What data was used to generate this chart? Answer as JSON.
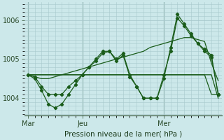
{
  "xlabel": "Pression niveau de la mer( hPa )",
  "bg_color": "#cce8ea",
  "grid_color": "#a8c8cc",
  "line_color": "#1a5c1a",
  "ylim": [
    1003.55,
    1006.45
  ],
  "yticks": [
    1004,
    1005,
    1006
  ],
  "xtick_labels": [
    "Mar",
    "Jeu",
    "Mer"
  ],
  "xtick_positions": [
    0,
    8,
    20
  ],
  "n_points": 29,
  "series": [
    {
      "y": [
        1004.6,
        1004.6,
        1004.6,
        1004.6,
        1004.6,
        1004.6,
        1004.6,
        1004.6,
        1004.6,
        1004.6,
        1004.6,
        1004.6,
        1004.6,
        1004.6,
        1004.6,
        1004.6,
        1004.6,
        1004.6,
        1004.6,
        1004.6,
        1004.6,
        1004.6,
        1004.6,
        1004.6,
        1004.6,
        1004.6,
        1004.6,
        1004.1,
        1004.1
      ],
      "marker": false
    },
    {
      "y": [
        1004.6,
        1004.6,
        1004.6,
        1004.6,
        1004.6,
        1004.6,
        1004.6,
        1004.6,
        1004.6,
        1004.6,
        1004.6,
        1004.6,
        1004.6,
        1004.6,
        1004.6,
        1004.6,
        1004.6,
        1004.6,
        1004.6,
        1004.6,
        1004.6,
        1004.6,
        1004.6,
        1004.6,
        1004.6,
        1004.6,
        1004.6,
        1004.6,
        1004.0
      ],
      "marker": false
    },
    {
      "y": [
        1004.6,
        1004.55,
        1004.5,
        1004.5,
        1004.55,
        1004.6,
        1004.65,
        1004.7,
        1004.75,
        1004.8,
        1004.85,
        1004.9,
        1004.95,
        1005.0,
        1005.05,
        1005.1,
        1005.15,
        1005.2,
        1005.3,
        1005.35,
        1005.4,
        1005.45,
        1005.5,
        1005.55,
        1005.55,
        1005.5,
        1005.45,
        1004.9,
        1004.45
      ],
      "marker": false
    },
    {
      "y": [
        1004.6,
        1004.55,
        1004.3,
        1004.1,
        1004.1,
        1004.1,
        1004.3,
        1004.45,
        1004.6,
        1004.8,
        1004.95,
        1005.15,
        1005.2,
        1005.0,
        1005.15,
        1004.6,
        1004.3,
        1004.0,
        1004.0,
        1004.0,
        1004.6,
        1005.2,
        1006.05,
        1005.85,
        1005.6,
        1005.4,
        1005.2,
        1005.05,
        1004.1
      ],
      "marker": true
    },
    {
      "y": [
        1004.6,
        1004.5,
        1004.2,
        1003.85,
        1003.75,
        1003.85,
        1004.1,
        1004.35,
        1004.6,
        1004.8,
        1005.0,
        1005.2,
        1005.2,
        1004.95,
        1005.1,
        1004.55,
        1004.3,
        1004.0,
        1004.0,
        1004.0,
        1004.5,
        1005.3,
        1006.15,
        1005.9,
        1005.65,
        1005.4,
        1005.25,
        1005.1,
        1004.1
      ],
      "marker": true
    }
  ],
  "linewidth": 0.9,
  "marker": "D",
  "markersize": 2.2
}
